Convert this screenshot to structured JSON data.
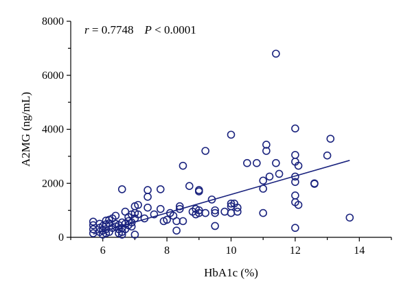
{
  "colors": {
    "series": "#1a237e",
    "axis": "#000000"
  },
  "chart_data": {
    "type": "scatter",
    "title": "",
    "xlabel": "HbA1c (%)",
    "ylabel": "A2MG (ng/mL)",
    "xlim": [
      5,
      15
    ],
    "ylim": [
      0,
      8000
    ],
    "xticks": [
      6,
      8,
      10,
      12,
      14
    ],
    "yticks": [
      0,
      2000,
      4000,
      6000,
      8000
    ],
    "grid": false,
    "legend": "none",
    "annotation": {
      "r_var": "r",
      "r_text": " = 0.7748",
      "p_var": "P",
      "p_text": " < 0.0001"
    },
    "points": [
      [
        5.7,
        150
      ],
      [
        5.7,
        300
      ],
      [
        5.7,
        450
      ],
      [
        5.7,
        580
      ],
      [
        5.9,
        200
      ],
      [
        5.9,
        350
      ],
      [
        5.9,
        500
      ],
      [
        6.0,
        100
      ],
      [
        6.0,
        250
      ],
      [
        6.0,
        420
      ],
      [
        6.1,
        150
      ],
      [
        6.1,
        300
      ],
      [
        6.1,
        480
      ],
      [
        6.1,
        620
      ],
      [
        6.2,
        200
      ],
      [
        6.2,
        520
      ],
      [
        6.2,
        650
      ],
      [
        6.3,
        350
      ],
      [
        6.3,
        700
      ],
      [
        6.4,
        400
      ],
      [
        6.4,
        500
      ],
      [
        6.4,
        800
      ],
      [
        6.5,
        150
      ],
      [
        6.5,
        300
      ],
      [
        6.5,
        450
      ],
      [
        6.6,
        100
      ],
      [
        6.6,
        200
      ],
      [
        6.6,
        350
      ],
      [
        6.6,
        550
      ],
      [
        6.6,
        1780
      ],
      [
        6.7,
        300
      ],
      [
        6.7,
        500
      ],
      [
        6.7,
        950
      ],
      [
        6.8,
        450
      ],
      [
        6.8,
        600
      ],
      [
        6.8,
        750
      ],
      [
        6.9,
        400
      ],
      [
        6.9,
        550
      ],
      [
        6.9,
        850
      ],
      [
        7.0,
        700
      ],
      [
        7.0,
        900
      ],
      [
        7.0,
        1150
      ],
      [
        7.0,
        100
      ],
      [
        7.1,
        850
      ],
      [
        7.1,
        1200
      ],
      [
        7.3,
        700
      ],
      [
        7.4,
        1100
      ],
      [
        7.4,
        1500
      ],
      [
        7.4,
        1750
      ],
      [
        7.6,
        850
      ],
      [
        7.8,
        1050
      ],
      [
        7.8,
        1780
      ],
      [
        7.9,
        600
      ],
      [
        8.0,
        650
      ],
      [
        8.1,
        900
      ],
      [
        8.2,
        800
      ],
      [
        8.3,
        250
      ],
      [
        8.3,
        600
      ],
      [
        8.4,
        1050
      ],
      [
        8.4,
        1150
      ],
      [
        8.5,
        600
      ],
      [
        8.5,
        2650
      ],
      [
        8.7,
        1900
      ],
      [
        8.8,
        950
      ],
      [
        8.9,
        850
      ],
      [
        8.9,
        1050
      ],
      [
        9.0,
        900
      ],
      [
        9.0,
        1000
      ],
      [
        9.0,
        1700
      ],
      [
        9.0,
        1750
      ],
      [
        9.2,
        3200
      ],
      [
        9.2,
        900
      ],
      [
        9.4,
        1400
      ],
      [
        9.5,
        420
      ],
      [
        9.5,
        900
      ],
      [
        9.5,
        1000
      ],
      [
        9.8,
        950
      ],
      [
        10.0,
        900
      ],
      [
        10.0,
        1150
      ],
      [
        10.0,
        1250
      ],
      [
        10.0,
        3800
      ],
      [
        10.1,
        1250
      ],
      [
        10.2,
        1100
      ],
      [
        10.2,
        950
      ],
      [
        10.5,
        2750
      ],
      [
        10.8,
        2750
      ],
      [
        11.0,
        900
      ],
      [
        11.0,
        1800
      ],
      [
        11.0,
        2100
      ],
      [
        11.1,
        3200
      ],
      [
        11.1,
        3430
      ],
      [
        11.2,
        2250
      ],
      [
        11.4,
        6800
      ],
      [
        11.4,
        2750
      ],
      [
        11.5,
        2350
      ],
      [
        12.0,
        350
      ],
      [
        12.0,
        1300
      ],
      [
        12.0,
        1550
      ],
      [
        12.0,
        2050
      ],
      [
        12.0,
        2250
      ],
      [
        12.0,
        2800
      ],
      [
        12.0,
        3050
      ],
      [
        12.0,
        4030
      ],
      [
        12.1,
        1200
      ],
      [
        12.1,
        2650
      ],
      [
        12.6,
        1980
      ],
      [
        12.6,
        2000
      ],
      [
        13.0,
        3030
      ],
      [
        13.1,
        3650
      ],
      [
        13.7,
        730
      ]
    ],
    "regression_line": {
      "x": [
        5.7,
        13.7
      ],
      "y": [
        120,
        2850
      ]
    }
  }
}
